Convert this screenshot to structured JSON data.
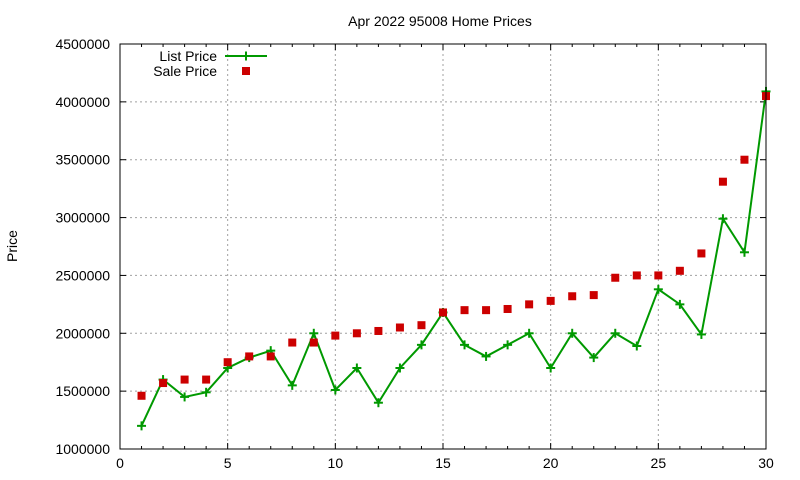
{
  "chart_data": {
    "type": "line",
    "title": "Apr 2022 95008 Home Prices",
    "xlabel": "",
    "ylabel": "Price",
    "xlim": [
      0,
      30
    ],
    "ylim": [
      1000000,
      4500000
    ],
    "xticks": [
      0,
      5,
      10,
      15,
      20,
      25,
      30
    ],
    "yticks": [
      1000000,
      1500000,
      2000000,
      2500000,
      3000000,
      3500000,
      4000000,
      4500000
    ],
    "grid": true,
    "legend_position": "top-left",
    "x": [
      1,
      2,
      3,
      4,
      5,
      6,
      7,
      8,
      9,
      10,
      11,
      12,
      13,
      14,
      15,
      16,
      17,
      18,
      19,
      20,
      21,
      22,
      23,
      24,
      25,
      26,
      27,
      28,
      29,
      30
    ],
    "series": [
      {
        "name": "List Price",
        "style": "line+cross",
        "color": "#009900",
        "values": [
          1200000,
          1600000,
          1450000,
          1490000,
          1700000,
          1790000,
          1850000,
          1550000,
          2000000,
          1510000,
          1700000,
          1400000,
          1700000,
          1900000,
          2180000,
          1900000,
          1800000,
          1900000,
          2000000,
          1700000,
          2000000,
          1790000,
          2000000,
          1890000,
          2380000,
          2250000,
          1990000,
          2990000,
          2700000,
          4090000
        ]
      },
      {
        "name": "Sale Price",
        "style": "square",
        "color": "#cc0000",
        "values": [
          1460000,
          1570000,
          1600000,
          1600000,
          1750000,
          1800000,
          1800000,
          1920000,
          1920000,
          1980000,
          2000000,
          2020000,
          2050000,
          2070000,
          2180000,
          2200000,
          2200000,
          2210000,
          2250000,
          2280000,
          2320000,
          2330000,
          2480000,
          2500000,
          2500000,
          2540000,
          2690000,
          3310000,
          3500000,
          4050000
        ]
      }
    ]
  }
}
